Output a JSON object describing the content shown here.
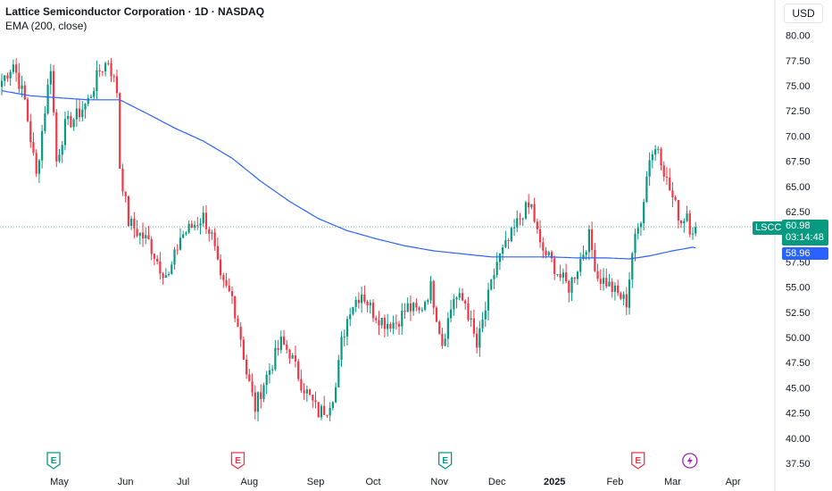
{
  "header": {
    "title": "Lattice Semiconductor Corporation · 1D · NASDAQ",
    "indicator": "EMA (200, close)",
    "currency": "USD"
  },
  "price_label": {
    "ticker": "LSCC",
    "last": "60.98",
    "countdown": "03:14:48",
    "ema_value": "58.96"
  },
  "colors": {
    "up": "#089981",
    "down": "#f23645",
    "ema": "#2962ff",
    "last_line": "#089981"
  },
  "chart_data": {
    "type": "candlestick",
    "title": "Lattice Semiconductor Corporation · 1D · NASDAQ",
    "indicator": "EMA (200, close)",
    "ylim": [
      36.5,
      81.5
    ],
    "y_ticks": [
      "80.00",
      "77.50",
      "75.00",
      "72.50",
      "70.00",
      "67.50",
      "65.00",
      "62.50",
      "57.50",
      "55.00",
      "52.50",
      "50.00",
      "47.50",
      "45.00",
      "42.50",
      "40.00",
      "37.50"
    ],
    "x_ticks": [
      {
        "label": "May",
        "idx": 20
      },
      {
        "label": "Jun",
        "idx": 43
      },
      {
        "label": "Jul",
        "idx": 63
      },
      {
        "label": "Aug",
        "idx": 86
      },
      {
        "label": "Sep",
        "idx": 109
      },
      {
        "label": "Oct",
        "idx": 129
      },
      {
        "label": "Nov",
        "idx": 152
      },
      {
        "label": "Dec",
        "idx": 172
      },
      {
        "label": "2025",
        "idx": 192
      },
      {
        "label": "Feb",
        "idx": 213
      },
      {
        "label": "Mar",
        "idx": 233
      },
      {
        "label": "Apr",
        "idx": 254
      }
    ],
    "events": [
      {
        "type": "E",
        "color": "#089981",
        "idx": 18
      },
      {
        "type": "E",
        "color": "#f23645",
        "idx": 82
      },
      {
        "type": "E",
        "color": "#089981",
        "idx": 154
      },
      {
        "type": "E",
        "color": "#f23645",
        "idx": 221
      },
      {
        "type": "D",
        "color": "#9c27b0",
        "idx": 239
      }
    ],
    "candles_count": 242,
    "anchors": [
      [
        0,
        75.5
      ],
      [
        4,
        77.2
      ],
      [
        8,
        73.5
      ],
      [
        12,
        66.0
      ],
      [
        14,
        70.5
      ],
      [
        17,
        77.0
      ],
      [
        19,
        67.5
      ],
      [
        22,
        71.0
      ],
      [
        26,
        72.0
      ],
      [
        30,
        73.5
      ],
      [
        34,
        76.5
      ],
      [
        37,
        77.5
      ],
      [
        40,
        74.5
      ],
      [
        41,
        67.0
      ],
      [
        44,
        61.5
      ],
      [
        47,
        60.5
      ],
      [
        51,
        59.5
      ],
      [
        55,
        57.0
      ],
      [
        58,
        56.0
      ],
      [
        62,
        60.0
      ],
      [
        66,
        61.0
      ],
      [
        70,
        62.0
      ],
      [
        73,
        60.0
      ],
      [
        76,
        55.5
      ],
      [
        80,
        54.0
      ],
      [
        83,
        50.0
      ],
      [
        85,
        46.5
      ],
      [
        88,
        43.0
      ],
      [
        91,
        45.5
      ],
      [
        94,
        47.5
      ],
      [
        97,
        49.5
      ],
      [
        100,
        48.5
      ],
      [
        104,
        45.5
      ],
      [
        108,
        43.5
      ],
      [
        110,
        42.5
      ],
      [
        113,
        43.0
      ],
      [
        116,
        45.0
      ],
      [
        118,
        49.5
      ],
      [
        121,
        53.0
      ],
      [
        125,
        54.5
      ],
      [
        129,
        52.5
      ],
      [
        133,
        51.5
      ],
      [
        137,
        51.5
      ],
      [
        141,
        53.0
      ],
      [
        145,
        52.5
      ],
      [
        149,
        55.0
      ],
      [
        153,
        49.5
      ],
      [
        157,
        54.0
      ],
      [
        161,
        53.5
      ],
      [
        165,
        49.0
      ],
      [
        169,
        54.0
      ],
      [
        172,
        57.5
      ],
      [
        176,
        59.5
      ],
      [
        181,
        62.5
      ],
      [
        184,
        63.0
      ],
      [
        187,
        59.0
      ],
      [
        191,
        57.5
      ],
      [
        194,
        56.0
      ],
      [
        197,
        55.0
      ],
      [
        200,
        57.0
      ],
      [
        204,
        60.0
      ],
      [
        207,
        56.0
      ],
      [
        210,
        55.5
      ],
      [
        213,
        54.5
      ],
      [
        217,
        53.5
      ],
      [
        219,
        58.5
      ],
      [
        222,
        62.0
      ],
      [
        225,
        68.0
      ],
      [
        228,
        69.0
      ],
      [
        231,
        65.5
      ],
      [
        234,
        63.0
      ],
      [
        236,
        61.5
      ],
      [
        238,
        62.5
      ],
      [
        239,
        60.98
      ]
    ],
    "gap_after_idx": 217,
    "ema200_anchors": [
      [
        0,
        74.5
      ],
      [
        10,
        74.0
      ],
      [
        30,
        73.6
      ],
      [
        41,
        73.6
      ],
      [
        50,
        72.3
      ],
      [
        60,
        70.8
      ],
      [
        70,
        69.5
      ],
      [
        80,
        67.8
      ],
      [
        90,
        65.5
      ],
      [
        100,
        63.5
      ],
      [
        110,
        61.8
      ],
      [
        120,
        60.6
      ],
      [
        130,
        59.8
      ],
      [
        140,
        59.1
      ],
      [
        150,
        58.6
      ],
      [
        160,
        58.3
      ],
      [
        170,
        58.0
      ],
      [
        180,
        58.0
      ],
      [
        190,
        58.0
      ],
      [
        200,
        57.9
      ],
      [
        210,
        57.9
      ],
      [
        218,
        57.8
      ],
      [
        225,
        58.1
      ],
      [
        233,
        58.6
      ],
      [
        240,
        58.96
      ]
    ],
    "last_price": 60.98,
    "ema_last": 58.96
  }
}
